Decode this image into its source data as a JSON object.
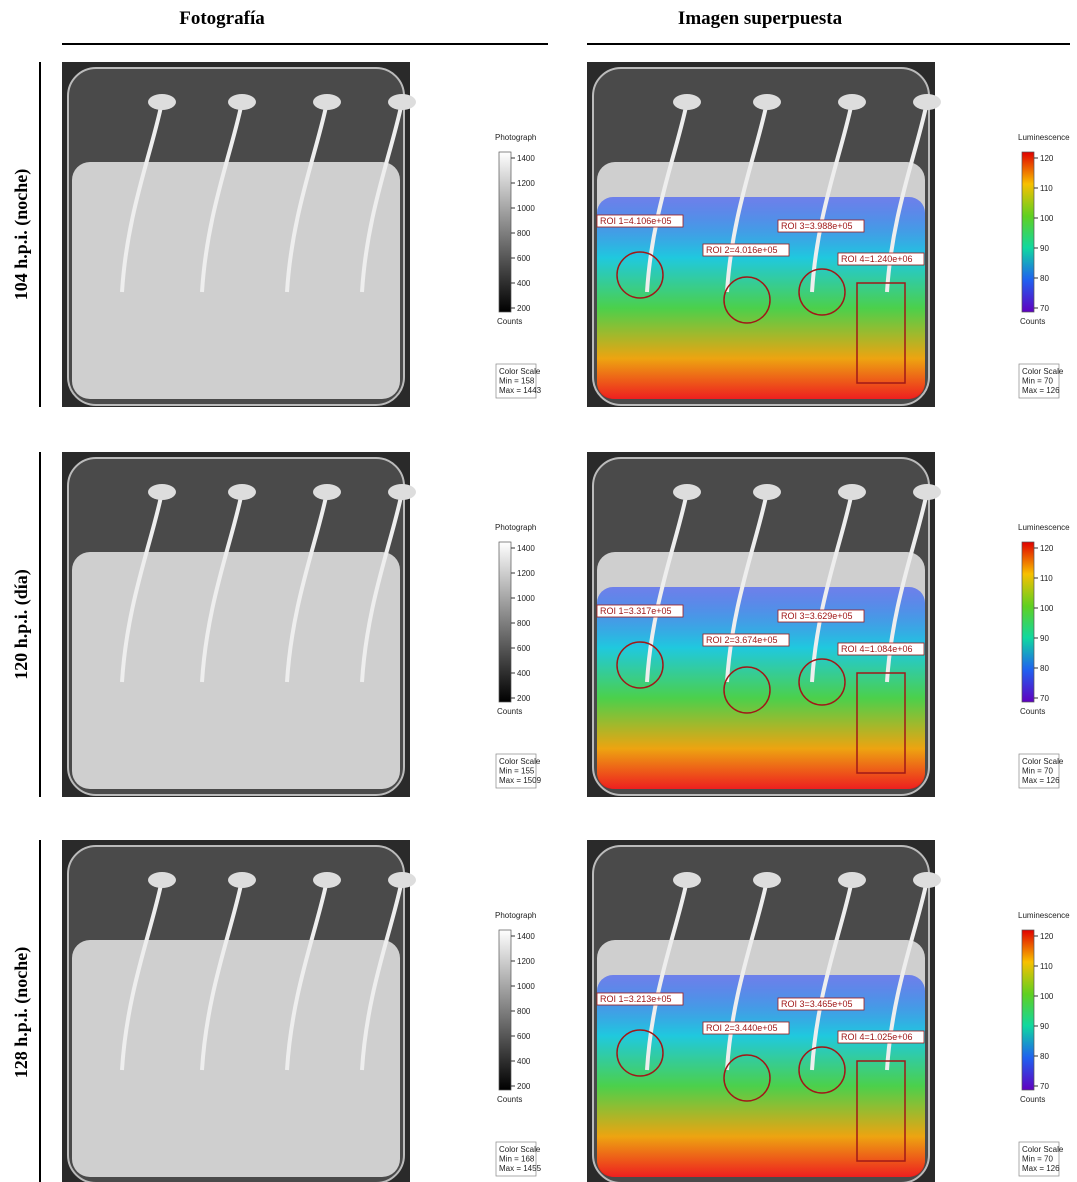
{
  "columns": [
    "Fotografía",
    "Imagen superpuesta"
  ],
  "rows": [
    {
      "label": "104 h.p.i. (noche)",
      "photo_scale": {
        "title": "Photograph",
        "ticks": [
          "1400",
          "1200",
          "1000",
          "800",
          "600",
          "400",
          "200"
        ],
        "unit": "Counts",
        "legend": [
          "Color Scale",
          "Min = 158",
          "Max = 1443"
        ]
      },
      "overlay_scale": {
        "title": "Luminescence",
        "ticks": [
          "120",
          "110",
          "100",
          "90",
          "80",
          "70"
        ],
        "unit": "Counts",
        "legend": [
          "Color Scale",
          "Min = 70",
          "Max = 126"
        ]
      },
      "rois": [
        "ROI 1=4.106e+05",
        "ROI 2=4.016e+05",
        "ROI 3=3.988e+05",
        "ROI 4=1.240e+06"
      ]
    },
    {
      "label": "120 h.p.i. (día)",
      "photo_scale": {
        "title": "Photograph",
        "ticks": [
          "1400",
          "1200",
          "1000",
          "800",
          "600",
          "400",
          "200"
        ],
        "unit": "Counts",
        "legend": [
          "Color Scale",
          "Min = 155",
          "Max = 1509"
        ]
      },
      "overlay_scale": {
        "title": "Luminescence",
        "ticks": [
          "120",
          "110",
          "100",
          "90",
          "80",
          "70"
        ],
        "unit": "Counts",
        "legend": [
          "Color Scale",
          "Min = 70",
          "Max = 126"
        ]
      },
      "rois": [
        "ROI 1=3.317e+05",
        "ROI 2=3.674e+05",
        "ROI 3=3.629e+05",
        "ROI 4=1.084e+06"
      ]
    },
    {
      "label": "128 h.p.i. (noche)",
      "photo_scale": {
        "title": "Photograph",
        "ticks": [
          "1400",
          "1200",
          "1000",
          "800",
          "600",
          "400",
          "200"
        ],
        "unit": "Counts",
        "legend": [
          "Color Scale",
          "Min = 168",
          "Max = 1455"
        ]
      },
      "overlay_scale": {
        "title": "Luminescence",
        "ticks": [
          "120",
          "110",
          "100",
          "90",
          "80",
          "70"
        ],
        "unit": "Counts",
        "legend": [
          "Color Scale",
          "Min = 70",
          "Max = 126"
        ]
      },
      "rois": [
        "ROI 1=3.213e+05",
        "ROI 2=3.440e+05",
        "ROI 3=3.465e+05",
        "ROI 4=1.025e+06"
      ]
    }
  ]
}
